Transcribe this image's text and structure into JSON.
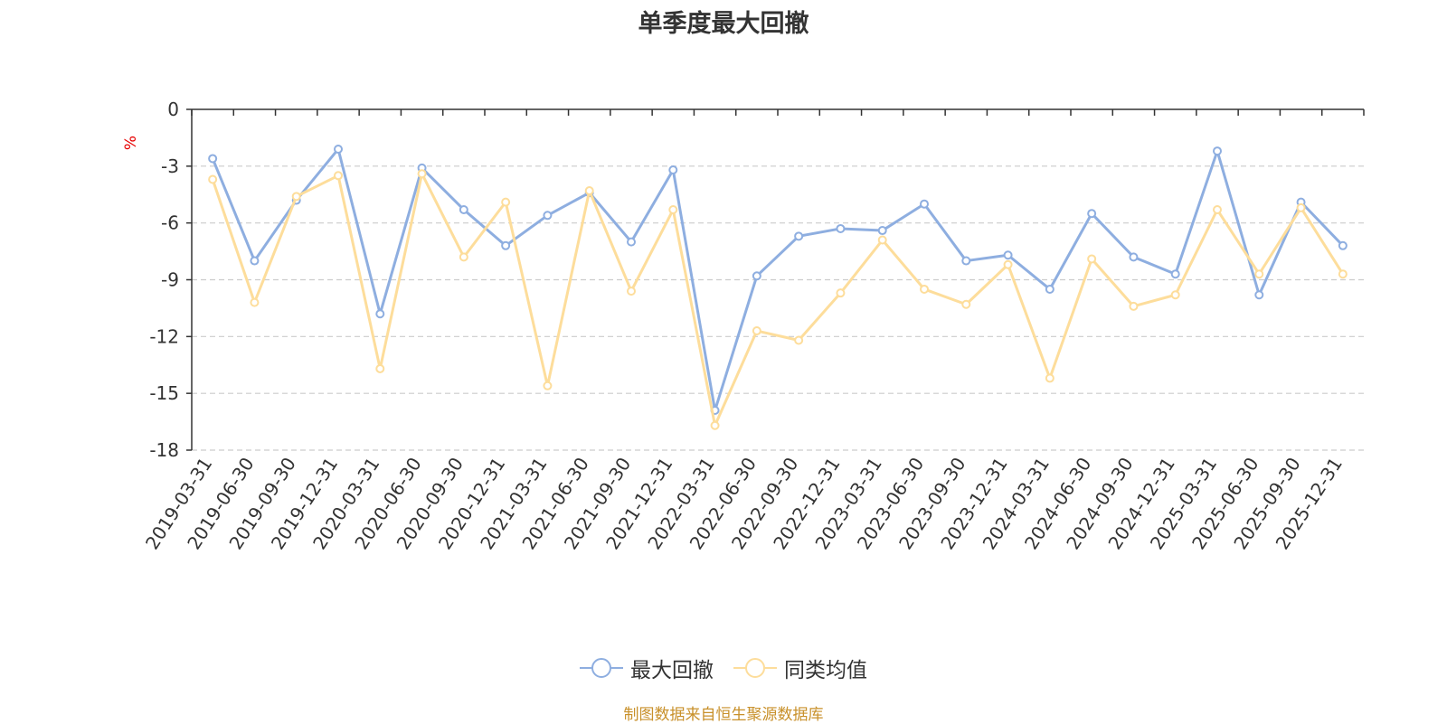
{
  "chart_data": {
    "type": "line",
    "title": "单季度最大回撤",
    "ylabel": "%",
    "ylim": [
      -18,
      0
    ],
    "yticks": [
      0,
      -3,
      -6,
      -9,
      -12,
      -15,
      -18
    ],
    "grid": true,
    "legend_position": "bottom-center",
    "categories": [
      "2019-03-31",
      "2019-06-30",
      "2019-09-30",
      "2019-12-31",
      "2020-03-31",
      "2020-06-30",
      "2020-09-30",
      "2020-12-31",
      "2021-03-31",
      "2021-06-30",
      "2021-09-30",
      "2021-12-31",
      "2022-03-31",
      "2022-06-30",
      "2022-09-30",
      "2022-12-31",
      "2023-03-31",
      "2023-06-30",
      "2023-09-30",
      "2023-12-31",
      "2024-03-31",
      "2024-06-30",
      "2024-09-30",
      "2024-12-31",
      "2025-03-31",
      "2025-06-30",
      "2025-09-30",
      "2025-12-31"
    ],
    "series": [
      {
        "name": "最大回撤",
        "color": "#8eaee0",
        "values": [
          -2.6,
          -8.0,
          -4.8,
          -2.1,
          -10.8,
          -3.1,
          -5.3,
          -7.2,
          -5.6,
          -4.4,
          -7.0,
          -3.2,
          -15.9,
          -8.8,
          -6.7,
          -6.3,
          -6.4,
          -5.0,
          -8.0,
          -7.7,
          -9.5,
          -5.5,
          -7.8,
          -8.7,
          -2.2,
          -9.8,
          -4.9,
          -7.2
        ]
      },
      {
        "name": "同类均值",
        "color": "#fddd9b",
        "values": [
          -3.7,
          -10.2,
          -4.6,
          -3.5,
          -13.7,
          -3.4,
          -7.8,
          -4.9,
          -14.6,
          -4.3,
          -9.6,
          -5.3,
          -16.7,
          -11.7,
          -12.2,
          -9.7,
          -6.9,
          -9.5,
          -10.3,
          -8.2,
          -14.2,
          -7.9,
          -10.4,
          -9.8,
          -5.3,
          -8.7,
          -5.2,
          -8.7
        ]
      }
    ]
  },
  "footer": {
    "source": "制图数据来自恒生聚源数据库"
  },
  "colors": {
    "axis": "#333333",
    "grid": "#cccccc",
    "ylabel": "#e60000",
    "source": "#c8902a"
  }
}
